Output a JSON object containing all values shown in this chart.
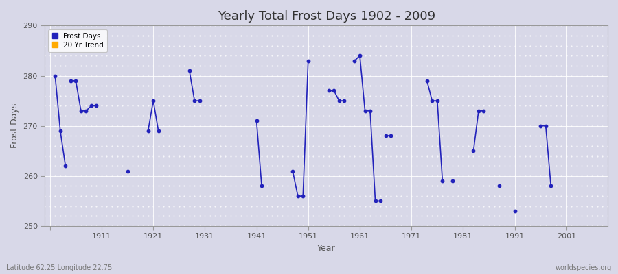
{
  "title": "Yearly Total Frost Days 1902 - 2009",
  "xlabel": "Year",
  "ylabel": "Frost Days",
  "xlim": [
    1900,
    2009
  ],
  "ylim": [
    250,
    290
  ],
  "yticks": [
    250,
    260,
    270,
    280,
    290
  ],
  "xticks": [
    1901,
    1911,
    1921,
    1931,
    1941,
    1951,
    1961,
    1971,
    1981,
    1991,
    2001
  ],
  "xtick_labels": [
    "",
    "1911",
    "1921",
    "1931",
    "1941",
    "1951",
    "1961",
    "1971",
    "1981",
    "1991",
    "2001"
  ],
  "background_color": "#d8d8e8",
  "plot_bg_color": "#d8d8e8",
  "line_color": "#2222bb",
  "trend_color": "#ffaa00",
  "title_fontsize": 13,
  "label_fontsize": 9,
  "tick_fontsize": 8,
  "grid_color": "#ffffff",
  "legend_bg": "#ffffff",
  "segments": [
    [
      [
        1902,
        280
      ],
      [
        1903,
        269
      ],
      [
        1904,
        262
      ]
    ],
    [
      [
        1905,
        279
      ],
      [
        1906,
        279
      ],
      [
        1907,
        273
      ],
      [
        1908,
        273
      ],
      [
        1909,
        274
      ],
      [
        1910,
        274
      ]
    ],
    [
      [
        1916,
        261
      ]
    ],
    [
      [
        1920,
        269
      ],
      [
        1921,
        275
      ],
      [
        1922,
        269
      ]
    ],
    [
      [
        1928,
        281
      ],
      [
        1929,
        275
      ],
      [
        1930,
        275
      ]
    ],
    [
      [
        1941,
        271
      ],
      [
        1942,
        258
      ]
    ],
    [
      [
        1948,
        261
      ],
      [
        1949,
        256
      ],
      [
        1950,
        256
      ],
      [
        1951,
        283
      ]
    ],
    [
      [
        1955,
        277
      ],
      [
        1956,
        277
      ],
      [
        1957,
        275
      ],
      [
        1958,
        275
      ]
    ],
    [
      [
        1960,
        283
      ],
      [
        1961,
        284
      ],
      [
        1962,
        273
      ],
      [
        1963,
        273
      ],
      [
        1964,
        255
      ],
      [
        1965,
        255
      ]
    ],
    [
      [
        1966,
        268
      ],
      [
        1967,
        268
      ]
    ],
    [
      [
        1974,
        279
      ],
      [
        1975,
        275
      ],
      [
        1976,
        275
      ],
      [
        1977,
        259
      ]
    ],
    [
      [
        1979,
        259
      ]
    ],
    [
      [
        1983,
        265
      ],
      [
        1984,
        273
      ],
      [
        1985,
        273
      ]
    ],
    [
      [
        1988,
        258
      ]
    ],
    [
      [
        1991,
        253
      ]
    ],
    [
      [
        1996,
        270
      ],
      [
        1997,
        270
      ],
      [
        1998,
        258
      ]
    ]
  ]
}
